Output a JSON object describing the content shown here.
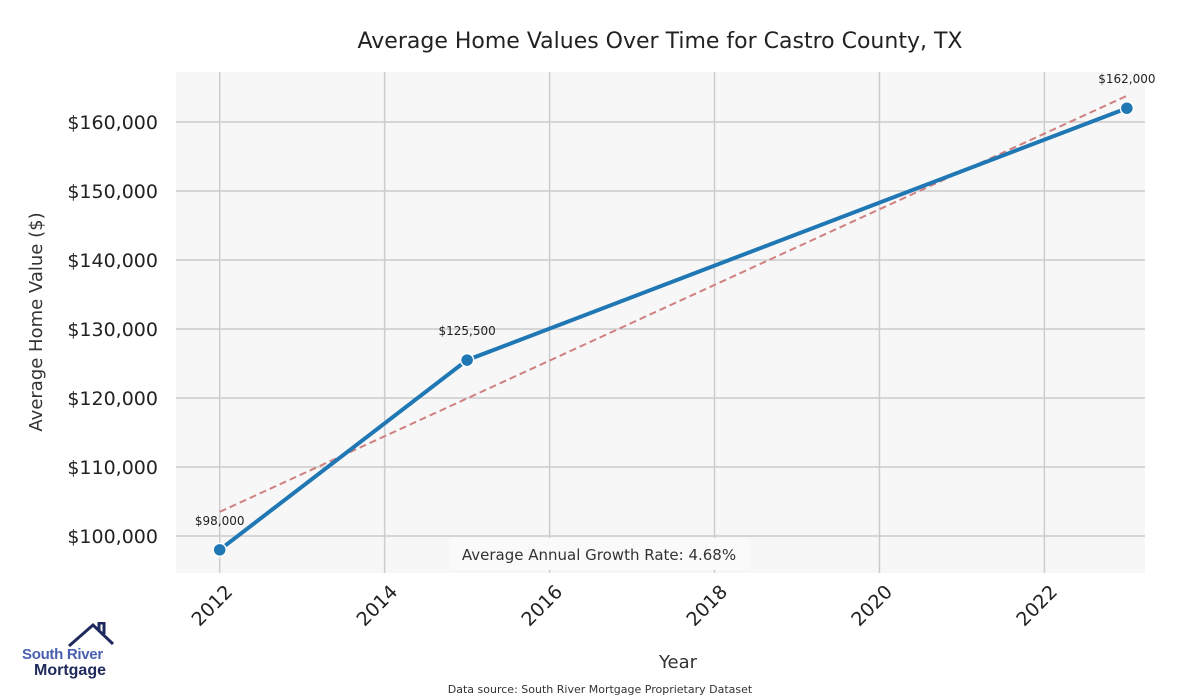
{
  "chart_data": {
    "type": "line",
    "title": "Average Home Values Over Time for Castro County, TX",
    "xlabel": "Year",
    "ylabel": "Average Home Value ($)",
    "x_ticks": [
      "2012",
      "2014",
      "2016",
      "2018",
      "2020",
      "2022"
    ],
    "y_ticks": [
      "$100,000",
      "$110,000",
      "$120,000",
      "$130,000",
      "$140,000",
      "$150,000",
      "$160,000"
    ],
    "y_tick_values": [
      100000,
      110000,
      120000,
      130000,
      140000,
      150000,
      160000
    ],
    "xlim": [
      2011.47,
      2023.22
    ],
    "ylim": [
      94640,
      167250
    ],
    "grid": true,
    "series": [
      {
        "name": "Average Home Value",
        "color": "#1f77b4",
        "x": [
          2012,
          2015,
          2023
        ],
        "y": [
          98000,
          125500,
          162000
        ],
        "labels": [
          "$98,000",
          "$125,500",
          "$162,000"
        ]
      }
    ],
    "trend": {
      "name": "Trend",
      "color": "#d08080",
      "x": [
        2012,
        2023
      ],
      "y": [
        103500,
        163800
      ]
    },
    "annotation": "Average Annual Growth Rate: 4.68%",
    "source": "Data source: South River Mortgage Proprietary Dataset"
  },
  "logo": {
    "line1": "South River",
    "line2": "Mortgage"
  }
}
